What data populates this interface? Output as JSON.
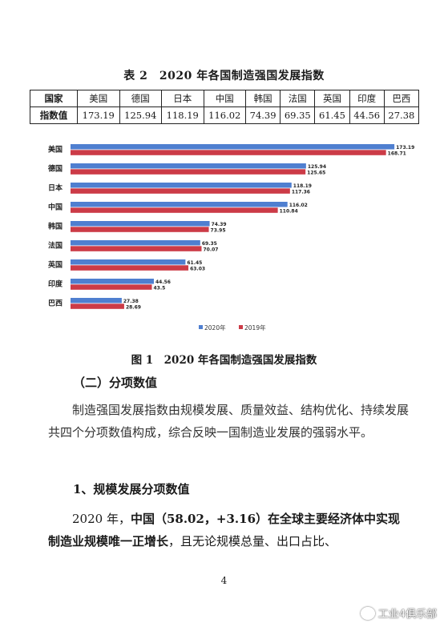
{
  "table": {
    "title": "表 2　2020 年各国制造强国发展指数",
    "row_header_country": "国家",
    "row_header_value": "指数值",
    "countries": [
      "美国",
      "德国",
      "日本",
      "中国",
      "韩国",
      "法国",
      "英国",
      "印度",
      "巴西"
    ],
    "values": [
      "173.19",
      "125.94",
      "118.19",
      "116.02",
      "74.39",
      "69.35",
      "61.45",
      "44.56",
      "27.38"
    ]
  },
  "chart_data": {
    "type": "bar",
    "orientation": "horizontal",
    "categories": [
      "美国",
      "德国",
      "日本",
      "中国",
      "韩国",
      "法国",
      "英国",
      "印度",
      "巴西"
    ],
    "series": [
      {
        "name": "2020年",
        "color": "#4f7fd0",
        "values": [
          173.19,
          125.94,
          118.19,
          116.02,
          74.39,
          69.35,
          61.45,
          44.56,
          27.38
        ]
      },
      {
        "name": "2019年",
        "color": "#cc3b47",
        "values": [
          168.71,
          125.65,
          117.36,
          110.84,
          73.95,
          70.07,
          63.03,
          43.5,
          28.69
        ]
      }
    ],
    "xlim": [
      0,
      180
    ],
    "grid": false,
    "legend": "bottom-right",
    "caption": "图 1　2020 年各国制造强国发展指数"
  },
  "text": {
    "section_heading": "（二）分项数值",
    "para1": "制造强国发展指数由规模发展、质量效益、结构优化、持续发展共四个分项数值构成，综合反映一国制造业发展的强弱水平。",
    "sub_heading": "1、规模发展分项数值",
    "para2_a": "2020 年，",
    "para2_b": "中国（58.02，+3.16）在全球主要经济体中实现制造业规模唯一正增长",
    "para2_c": "，且无论规模总量、出口占比、",
    "page_number": "4",
    "watermark": "工业4俱乐部"
  }
}
